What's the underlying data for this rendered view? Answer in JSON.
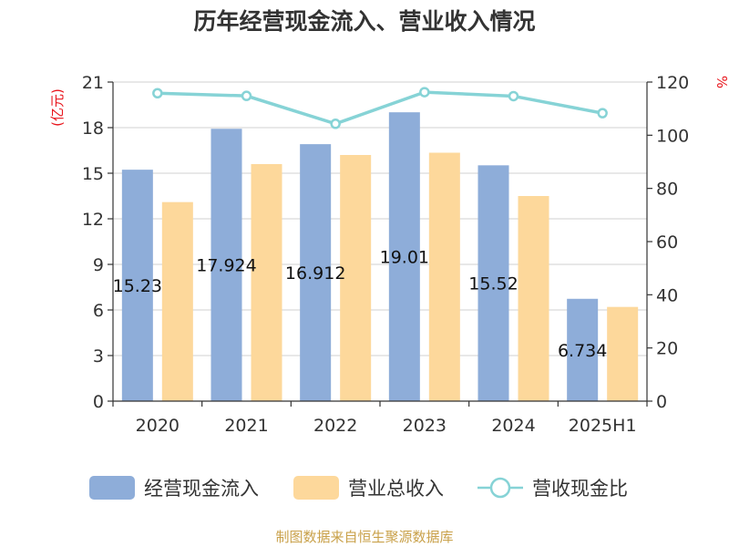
{
  "chart_data": {
    "type": "bar",
    "title": "历年经营现金流入、营业收入情况",
    "categories": [
      "2020",
      "2021",
      "2022",
      "2023",
      "2024",
      "2025H1"
    ],
    "y_left": {
      "unit_label": "(亿元)",
      "min": 0,
      "max": 21,
      "ticks": [
        0,
        3,
        6,
        9,
        12,
        15,
        18,
        21
      ]
    },
    "y_right": {
      "unit_label": "%",
      "min": 0,
      "max": 120,
      "ticks": [
        0,
        20,
        40,
        60,
        80,
        100,
        120
      ]
    },
    "series": [
      {
        "name": "经营现金流入",
        "type": "bar",
        "axis": "left",
        "color": "#8eadd9",
        "values": [
          15.231,
          17.924,
          16.912,
          19.01,
          15.52,
          6.734
        ],
        "data_labels": [
          "15.23",
          "17.924",
          "16.912",
          "19.01",
          "15.52",
          "6.734"
        ]
      },
      {
        "name": "营业总收入",
        "type": "bar",
        "axis": "left",
        "color": "#fdd89b",
        "values": [
          13.1,
          15.6,
          16.2,
          16.35,
          13.5,
          6.2
        ]
      },
      {
        "name": "营收现金比",
        "type": "line",
        "axis": "right",
        "color": "#86d3d6",
        "values": [
          115.8,
          114.8,
          104.3,
          116.2,
          114.7,
          108.3
        ]
      }
    ],
    "grid": true,
    "legend_position": "bottom"
  },
  "source": "制图数据来自恒生聚源数据库"
}
